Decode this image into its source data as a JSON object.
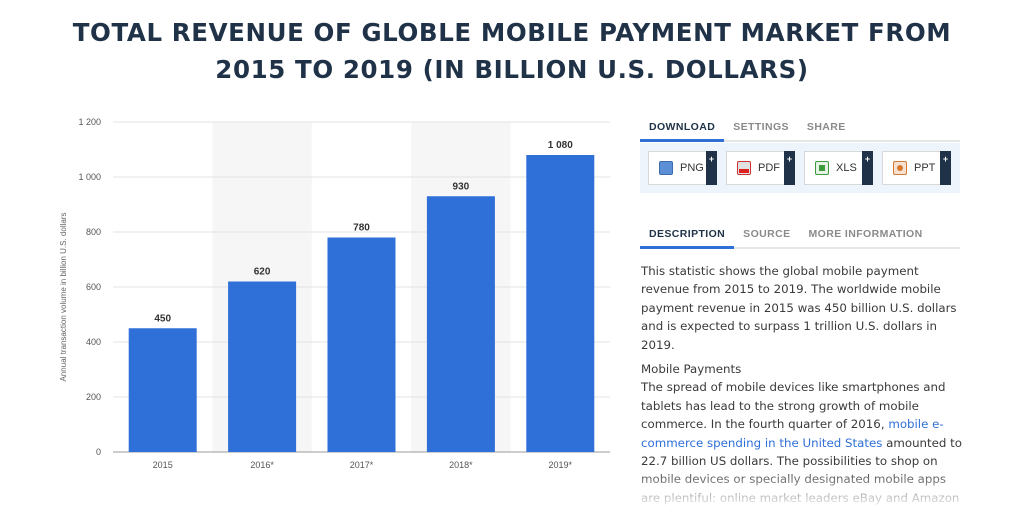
{
  "title": {
    "line1": "TOTAL REVENUE OF GLOBLE MOBILE PAYMENT MARKET FROM",
    "line2": "2015 TO 2019 (IN BILLION U.S. DOLLARS)"
  },
  "chart_data": {
    "type": "bar",
    "categories": [
      "2015",
      "2016*",
      "2017*",
      "2018*",
      "2019*"
    ],
    "values": [
      450,
      620,
      780,
      930,
      1080
    ],
    "value_labels": [
      "450",
      "620",
      "780",
      "930",
      "1 080"
    ],
    "ylabel": "Annual transaction volume in billion U.S. dollars",
    "ylim": [
      0,
      1200
    ],
    "yticks": [
      0,
      200,
      400,
      600,
      800,
      1000,
      1200
    ],
    "ytick_labels": [
      "0",
      "200",
      "400",
      "600",
      "800",
      "1 000",
      "1 200"
    ],
    "grid": true,
    "colors": {
      "bar": "#2e6fd8",
      "grid": "#e3e3e3",
      "plot_band": "#f6f6f6"
    }
  },
  "panel": {
    "tabs_top": [
      {
        "label": "DOWNLOAD",
        "active": true
      },
      {
        "label": "SETTINGS",
        "active": false
      },
      {
        "label": "SHARE",
        "active": false
      }
    ],
    "downloads": [
      {
        "label": "PNG",
        "icon": "png-file-icon"
      },
      {
        "label": "PDF",
        "icon": "pdf-file-icon"
      },
      {
        "label": "XLS",
        "icon": "xls-file-icon"
      },
      {
        "label": "PPT",
        "icon": "ppt-file-icon"
      }
    ],
    "plus": "+",
    "tabs_bottom": [
      {
        "label": "DESCRIPTION",
        "active": true
      },
      {
        "label": "SOURCE",
        "active": false
      },
      {
        "label": "MORE INFORMATION",
        "active": false
      }
    ],
    "description": {
      "p1": "This statistic shows the global mobile payment revenue from 2015 to 2019. The worldwide mobile payment revenue in 2015 was 450 billion U.S. dollars and is expected to surpass 1 trillion U.S. dollars in 2019.",
      "heading": "Mobile Payments",
      "p2_before": "The spread of mobile devices like smartphones and tablets has lead to the strong growth of mobile commerce. In the fourth quarter of 2016, ",
      "p2_link": "mobile e-commerce spending in the United States",
      "p2_after": " amounted to 22.7 billion US dollars. The possibilities to shop on mobile devices or specially designated mobile apps are plentiful: online market leaders eBay and Amazon"
    }
  }
}
